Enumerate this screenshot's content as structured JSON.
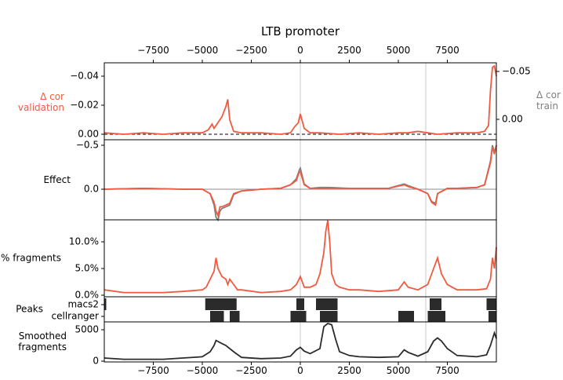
{
  "title": "LTB promoter",
  "colors": {
    "validation": "#f05a40",
    "train": "#7f7f7f",
    "fragments": "#f05a40",
    "smoothed": "#2b2b2b",
    "peaks": "#2b2b2b",
    "axes": "#000000",
    "vline": "#c9c9c9"
  },
  "top_axis_ticks": [
    "−7500",
    "−5000",
    "−2500",
    "0",
    "2500",
    "5000",
    "7500"
  ],
  "bottom_axis_ticks": [
    "−7500",
    "−5000",
    "−2500",
    "0",
    "2500",
    "5000",
    "7500"
  ],
  "chart_data": {
    "type": "line",
    "title": "LTB promoter",
    "x_range": [
      -10000,
      10000
    ],
    "x_ticks": [
      -7500,
      -5000,
      -2500,
      0,
      2500,
      5000,
      7500
    ],
    "reference_lines_x": [
      0,
      6400
    ],
    "panels": [
      {
        "id": "delta_cor",
        "ylabel_left": "Δ cor\nvalidation",
        "ylabel_right": "Δ cor\ntrain",
        "left_ticks": [
          "−0.04",
          "−0.02",
          "0.00"
        ],
        "right_ticks": [
          "−0.05",
          "0.00"
        ],
        "left_ylim": [
          0.001,
          -0.049
        ],
        "series": [
          {
            "name": "validation",
            "x": [
              -10000,
              -9000,
              -8000,
              -7000,
              -6000,
              -5000,
              -4700,
              -4500,
              -4400,
              -4300,
              -4000,
              -3800,
              -3700,
              -3600,
              -3400,
              -3000,
              -2000,
              -1000,
              -500,
              -300,
              -100,
              0,
              200,
              500,
              1000,
              2000,
              3000,
              4000,
              5000,
              5500,
              6000,
              6500,
              7000,
              8000,
              9000,
              9400,
              9600,
              9700,
              9800,
              9900,
              10000
            ],
            "y": [
              -0.001,
              0,
              -0.001,
              0,
              -0.001,
              -0.001,
              -0.003,
              -0.007,
              -0.004,
              -0.006,
              -0.012,
              -0.019,
              -0.024,
              -0.01,
              -0.002,
              -0.001,
              -0.001,
              0,
              -0.001,
              -0.005,
              -0.008,
              -0.014,
              -0.004,
              -0.001,
              -0.001,
              0,
              -0.001,
              0,
              -0.001,
              -0.001,
              -0.002,
              -0.001,
              0,
              -0.001,
              -0.001,
              -0.002,
              -0.006,
              -0.03,
              -0.046,
              -0.047,
              -0.04
            ]
          }
        ]
      },
      {
        "id": "effect",
        "ylabel": "Effect",
        "ticks": [
          "−0.5",
          "0.0"
        ],
        "ylim": [
          0.6,
          -0.53
        ],
        "series": [
          {
            "name": "validation",
            "x": [
              -10000,
              -8000,
              -6000,
              -5000,
              -4600,
              -4400,
              -4300,
              -4200,
              -4100,
              -4000,
              -3800,
              -3600,
              -3400,
              -3000,
              -2000,
              -1000,
              -500,
              -200,
              -50,
              0,
              200,
              500,
              1000,
              1500,
              2500,
              3500,
              4500,
              5300,
              5500,
              6000,
              6500,
              6700,
              6900,
              7000,
              7500,
              8000,
              9000,
              9400,
              9700,
              9800,
              9900,
              10000
            ],
            "y": [
              0,
              -0.01,
              0,
              0,
              0.05,
              0.15,
              0.25,
              0.3,
              0.2,
              0.2,
              0.18,
              0.16,
              0.05,
              0.02,
              0,
              -0.01,
              -0.05,
              -0.1,
              -0.2,
              -0.2,
              -0.05,
              -0.01,
              -0.01,
              -0.01,
              -0.01,
              -0.01,
              -0.01,
              -0.05,
              -0.03,
              0,
              0.05,
              0.15,
              0.18,
              0.05,
              -0.01,
              -0.01,
              -0.02,
              -0.05,
              -0.3,
              -0.48,
              -0.4,
              -0.5
            ]
          },
          {
            "name": "train",
            "x": [
              -10000,
              -8000,
              -6000,
              -5000,
              -4600,
              -4400,
              -4300,
              -4200,
              -4100,
              -4000,
              -3800,
              -3600,
              -3400,
              -3000,
              -2000,
              -1000,
              -500,
              -200,
              -50,
              0,
              200,
              500,
              1000,
              1500,
              2500,
              3500,
              4500,
              5300,
              5500,
              6000,
              6500,
              6700,
              6900,
              7000,
              7500,
              8000,
              9000,
              9400,
              9700,
              9800,
              9900,
              10000
            ],
            "y": [
              0,
              -0.01,
              0,
              0,
              0.05,
              0.18,
              0.32,
              0.35,
              0.25,
              0.22,
              0.2,
              0.18,
              0.06,
              0.02,
              0,
              -0.01,
              -0.05,
              -0.12,
              -0.22,
              -0.24,
              -0.06,
              -0.01,
              -0.02,
              -0.02,
              -0.01,
              -0.01,
              -0.01,
              -0.06,
              -0.04,
              0,
              0.05,
              0.14,
              0.16,
              0.05,
              -0.01,
              -0.01,
              -0.02,
              -0.05,
              -0.32,
              -0.5,
              -0.42,
              -0.5
            ]
          }
        ]
      },
      {
        "id": "pct_fragments",
        "ylabel": "% fragments",
        "ticks": [
          "10.0%",
          "5.0%",
          "0.0%"
        ],
        "ylim": [
          0,
          14
        ],
        "series": [
          {
            "name": "fragments",
            "x": [
              -10000,
              -9000,
              -8000,
              -7000,
              -6000,
              -5000,
              -4800,
              -4600,
              -4400,
              -4300,
              -4200,
              -4000,
              -3800,
              -3700,
              -3600,
              -3400,
              -3200,
              -3000,
              -2000,
              -1000,
              -500,
              -200,
              0,
              200,
              500,
              800,
              1000,
              1200,
              1300,
              1400,
              1500,
              1600,
              1800,
              2000,
              2500,
              3000,
              4000,
              5000,
              5300,
              5500,
              6000,
              6500,
              6800,
              7000,
              7200,
              7500,
              8000,
              9000,
              9500,
              9700,
              9800,
              9900,
              10000
            ],
            "y": [
              1,
              0.5,
              0.5,
              0.5,
              0.7,
              1,
              1.5,
              3,
              4.5,
              7,
              5,
              3.5,
              3,
              2,
              3,
              2,
              1,
              1,
              0.5,
              0.7,
              1,
              2,
              3.5,
              1.5,
              1.5,
              2,
              4,
              8,
              12,
              14,
              10,
              4,
              2,
              1.5,
              1,
              1,
              0.7,
              1,
              2.5,
              1.5,
              1,
              2,
              5,
              7,
              4,
              2,
              1,
              1,
              1.2,
              3,
              7,
              5,
              9
            ]
          }
        ]
      },
      {
        "id": "peaks",
        "ylabel": "Peaks",
        "rows": [
          "macs2",
          "cellranger"
        ],
        "intervals": {
          "macs2": [
            [
              -10000,
              -9900
            ],
            [
              -4850,
              -3250
            ],
            [
              -200,
              200
            ],
            [
              800,
              1900
            ],
            [
              6600,
              7200
            ],
            [
              9500,
              10000
            ]
          ],
          "cellranger": [
            [
              -4600,
              -3900
            ],
            [
              -3600,
              -3100
            ],
            [
              -500,
              300
            ],
            [
              1000,
              1900
            ],
            [
              5000,
              5800
            ],
            [
              6500,
              7400
            ],
            [
              9600,
              10000
            ]
          ]
        }
      },
      {
        "id": "smoothed",
        "ylabel": "Smoothed\nfragments",
        "ticks": [
          "5000",
          "0"
        ],
        "ylim": [
          0,
          6500
        ],
        "series": [
          {
            "name": "smoothed",
            "x": [
              -10000,
              -9000,
              -8000,
              -7000,
              -6000,
              -5000,
              -4600,
              -4400,
              -4300,
              -4000,
              -3800,
              -3600,
              -3400,
              -3000,
              -2000,
              -1000,
              -500,
              -200,
              0,
              200,
              500,
              1000,
              1200,
              1400,
              1600,
              1800,
              2000,
              2500,
              3000,
              4000,
              5000,
              5300,
              5500,
              6000,
              6500,
              6800,
              7000,
              7200,
              7500,
              8000,
              9000,
              9500,
              9700,
              9900,
              10000
            ],
            "y": [
              500,
              300,
              300,
              300,
              500,
              700,
              1500,
              2500,
              3300,
              2800,
              2500,
              2000,
              1500,
              600,
              400,
              500,
              800,
              1800,
              2200,
              1600,
              1200,
              2000,
              5500,
              6000,
              5800,
              3500,
              1500,
              900,
              700,
              600,
              700,
              1800,
              1400,
              800,
              1500,
              3200,
              3700,
              3200,
              2000,
              900,
              700,
              1000,
              2500,
              4500,
              3600
            ]
          }
        ]
      }
    ]
  }
}
